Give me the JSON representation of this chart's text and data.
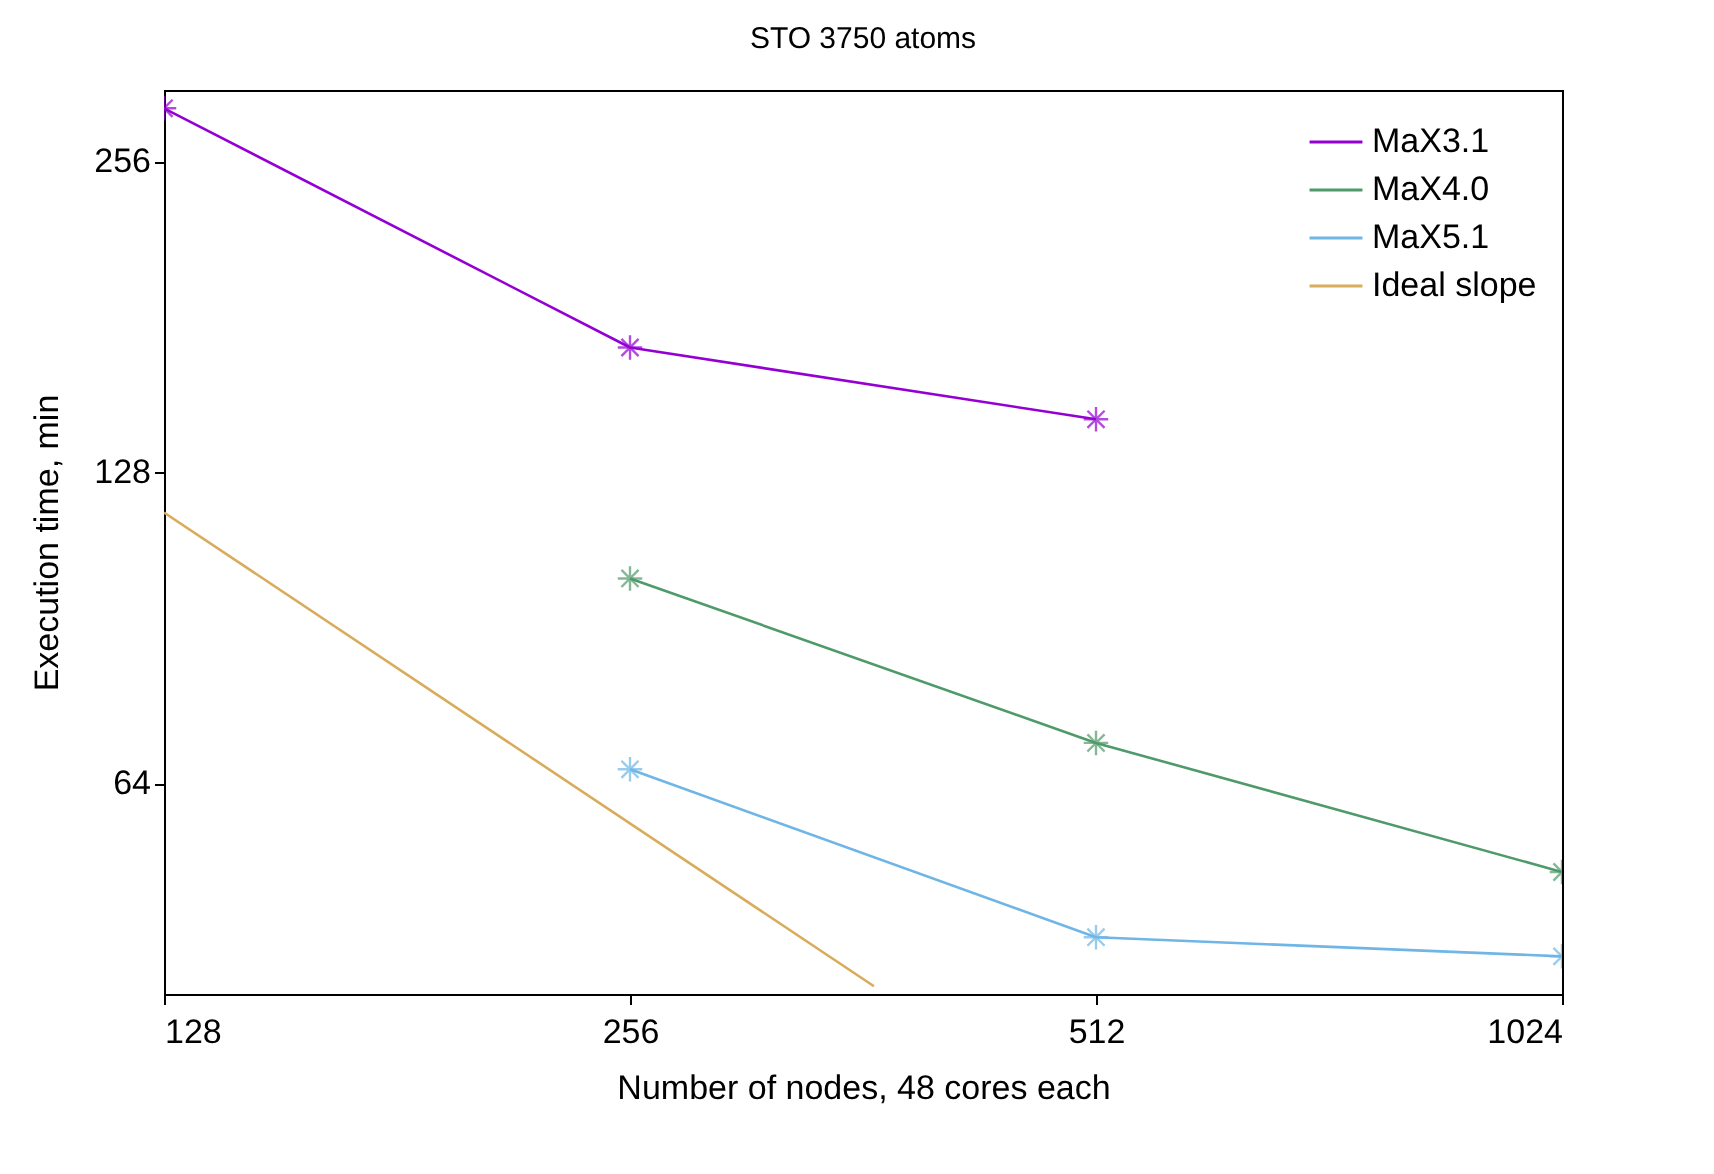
{
  "chart_data": {
    "type": "line",
    "title": "STO 3750 atoms",
    "xlabel": "Number of nodes, 48 cores each",
    "ylabel": "Execution time, min",
    "log": "xy",
    "grid": false,
    "legend": "top right",
    "marker": "cross",
    "xlim": [
      128,
      1024
    ],
    "xticks": [
      128,
      256,
      512,
      1024
    ],
    "ylim": [
      40,
      300
    ],
    "yticks": [
      64,
      128,
      256
    ],
    "series": [
      {
        "name": "MaX3.1",
        "color": "#9400d3",
        "x": [
          128,
          256,
          512
        ],
        "values": [
          288,
          169,
          144
        ]
      },
      {
        "name": "MaX4.0",
        "color": "#4f9a6a",
        "x": [
          256,
          512,
          1024
        ],
        "values": [
          101,
          70,
          52.5
        ]
      },
      {
        "name": "MaX5.1",
        "color": "#6fb6e6",
        "x": [
          256,
          512,
          1024
        ],
        "values": [
          66,
          45.4,
          43.5
        ]
      },
      {
        "name": "Ideal slope",
        "color": "#d9ac5c",
        "x": [
          128,
          368
        ],
        "values": [
          117,
          40.7
        ],
        "marker": "none"
      }
    ]
  }
}
